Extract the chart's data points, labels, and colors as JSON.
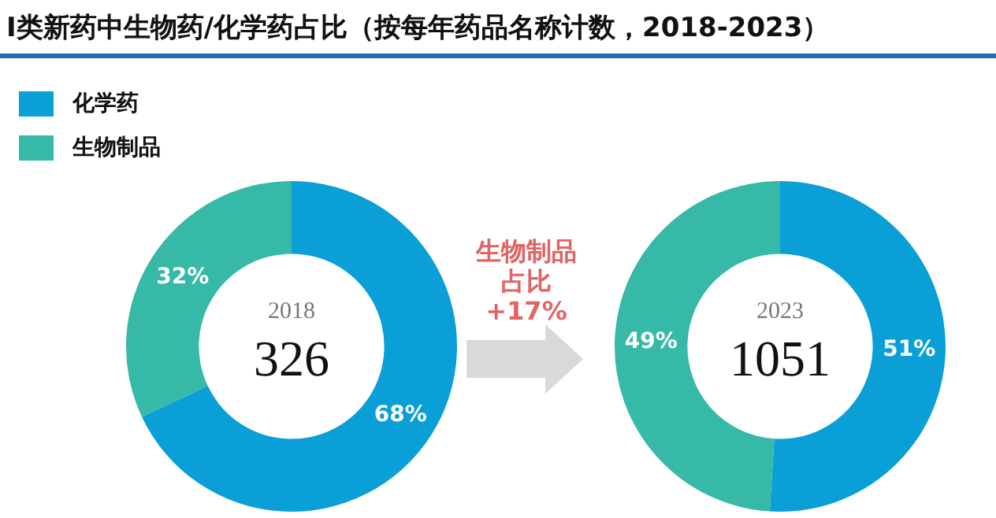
{
  "chart_data": [
    {
      "type": "donut",
      "title": "I类新药中生物药/化学药占比（按每年药品名称计数，2018-2023）",
      "categories": [
        "化学药",
        "生物制品"
      ],
      "values": [
        68,
        32
      ],
      "colors": [
        "#0a9fd6",
        "#36b9a7"
      ],
      "legend": "top left",
      "value_labels": [
        "68%",
        "32%"
      ],
      "annotations": [
        "2018",
        "326"
      ]
    },
    {
      "type": "donut",
      "categories": [
        null,
        null
      ],
      "values": [
        51,
        49
      ],
      "colors": [
        "#0a9fd6",
        "#36b9a7"
      ],
      "value_labels": [
        "51%",
        "49%"
      ],
      "annotations": [
        "2023",
        "1051",
        "生物制品占比+17%"
      ]
    }
  ]
}
